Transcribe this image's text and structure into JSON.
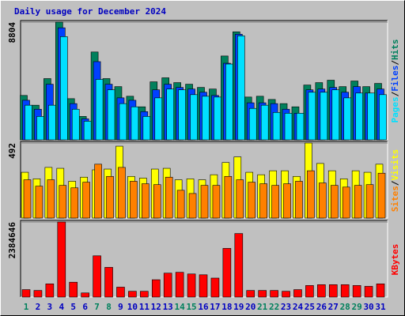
{
  "chart_data": [
    {
      "type": "bar",
      "title": "Daily usage for December 2024",
      "title_color": "#0000c0",
      "ylim": [
        0,
        8804
      ],
      "yticks": [
        8804
      ],
      "legend_separator": "/",
      "series": [
        {
          "name": "Hits",
          "color": "#00805c",
          "values": [
            3320,
            2590,
            4580,
            8804,
            3080,
            1750,
            6570,
            4580,
            3980,
            3260,
            2470,
            4340,
            4640,
            4280,
            4160,
            3920,
            3800,
            6270,
            8080,
            3200,
            3260,
            3020,
            2710,
            2470,
            4100,
            4280,
            4460,
            3980,
            4400,
            3980,
            4220
          ]
        },
        {
          "name": "Files",
          "color": "#0040ff",
          "values": [
            2960,
            2290,
            4160,
            8380,
            2710,
            1570,
            5850,
            4160,
            3140,
            2960,
            2110,
            3740,
            4160,
            3920,
            3800,
            3560,
            3320,
            5730,
            7900,
            2770,
            2770,
            2710,
            2290,
            1990,
            3740,
            3800,
            3920,
            3560,
            3980,
            3500,
            3800
          ]
        },
        {
          "name": "Pages",
          "color": "#00e0ff",
          "values": [
            2590,
            1750,
            2590,
            7720,
            2290,
            1390,
            4520,
            3740,
            2710,
            2470,
            1750,
            3140,
            3800,
            3740,
            3380,
            3260,
            3200,
            5670,
            7780,
            2350,
            2590,
            2050,
            1990,
            1990,
            3560,
            3560,
            3740,
            3140,
            3500,
            3500,
            3380
          ]
        }
      ]
    },
    {
      "type": "bar",
      "ylim": [
        0,
        492
      ],
      "yticks": [
        492
      ],
      "legend_separator": "/",
      "series": [
        {
          "name": "Visits",
          "color": "#ffff00",
          "values": [
            300,
            257,
            332,
            326,
            241,
            268,
            316,
            321,
            471,
            273,
            262,
            321,
            326,
            251,
            257,
            251,
            284,
            364,
            401,
            300,
            284,
            310,
            310,
            273,
            492,
            358,
            310,
            257,
            310,
            300,
            353
          ]
        },
        {
          "name": "Sites",
          "color": "#ff8000",
          "values": [
            251,
            209,
            251,
            214,
            198,
            235,
            353,
            273,
            332,
            241,
            225,
            219,
            268,
            182,
            161,
            214,
            214,
            273,
            251,
            235,
            225,
            214,
            225,
            241,
            310,
            230,
            214,
            203,
            214,
            219,
            294
          ]
        }
      ]
    },
    {
      "type": "bar",
      "ylim": [
        0,
        2384646
      ],
      "yticks": [
        2384646
      ],
      "series": [
        {
          "name": "KBytes",
          "color": "#ff0000",
          "values": [
            235800,
            209600,
            419300,
            2384646,
            471700,
            131000,
            1310200,
            943400,
            314500,
            183400,
            183400,
            550300,
            759900,
            786200,
            733700,
            707500,
            602700,
            1546100,
            2017800,
            209600,
            209600,
            209600,
            183400,
            235800,
            366900,
            393100,
            393100,
            393100,
            366900,
            340700,
            419300
          ]
        }
      ],
      "categories": [
        "1",
        "2",
        "3",
        "4",
        "5",
        "6",
        "7",
        "8",
        "9",
        "10",
        "11",
        "12",
        "13",
        "14",
        "15",
        "16",
        "17",
        "18",
        "19",
        "20",
        "21",
        "22",
        "23",
        "24",
        "25",
        "26",
        "27",
        "28",
        "29",
        "30",
        "31"
      ],
      "category_colors": [
        "#00805c",
        "#0000c0",
        "#0000c0",
        "#0000c0",
        "#0000c0",
        "#0000c0",
        "#00805c",
        "#00805c",
        "#0000c0",
        "#0000c0",
        "#0000c0",
        "#0000c0",
        "#0000c0",
        "#00805c",
        "#00805c",
        "#0000c0",
        "#0000c0",
        "#0000c0",
        "#0000c0",
        "#0000c0",
        "#00805c",
        "#00805c",
        "#0000c0",
        "#0000c0",
        "#0000c0",
        "#0000c0",
        "#0000c0",
        "#00805c",
        "#00805c",
        "#0000c0",
        "#0000c0"
      ]
    }
  ]
}
